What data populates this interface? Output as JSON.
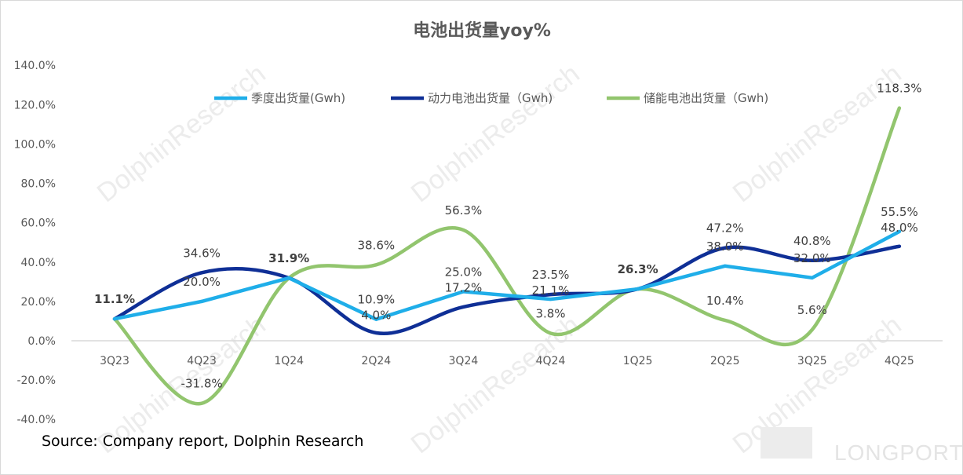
{
  "chart_data": {
    "type": "line",
    "title": "电池出货量yoy%",
    "categories": [
      "3Q23",
      "4Q23",
      "1Q24",
      "2Q24",
      "3Q24",
      "4Q24",
      "1Q25",
      "2Q25",
      "3Q25",
      "4Q25"
    ],
    "ylim": [
      -40,
      140
    ],
    "yticks": [
      "-40.0%",
      "-20.0%",
      "0.0%",
      "20.0%",
      "40.0%",
      "60.0%",
      "80.0%",
      "100.0%",
      "120.0%",
      "140.0%"
    ],
    "ytick_values": [
      -40,
      -20,
      0,
      20,
      40,
      60,
      80,
      100,
      120,
      140
    ],
    "grid": false,
    "legend": "top",
    "series": [
      {
        "name": "季度出货量(Gwh)",
        "color": "#1FAEE9",
        "smooth": false,
        "values": [
          11.1,
          20.0,
          31.9,
          10.9,
          25.0,
          21.1,
          26.3,
          38.0,
          32.0,
          55.5
        ],
        "labels": [
          "11.1%",
          "20.0%",
          "31.9%",
          "10.9%",
          "25.0%",
          "21.1%",
          "26.3%",
          "38.0%",
          "32.0%",
          "55.5%"
        ]
      },
      {
        "name": "动力电池出货量（Gwh)",
        "color": "#0F2F96",
        "smooth": true,
        "values": [
          11.1,
          34.6,
          31.9,
          4.0,
          17.2,
          23.5,
          26.3,
          47.2,
          40.8,
          48.0
        ],
        "labels": [
          "",
          "34.6%",
          "",
          "4.0%",
          "17.2%",
          "23.5%",
          "",
          "47.2%",
          "40.8%",
          "48.0%"
        ]
      },
      {
        "name": "储能电池出货量（Gwh)",
        "color": "#92C56E",
        "smooth": true,
        "values": [
          11.1,
          -31.8,
          31.9,
          38.6,
          56.3,
          3.8,
          26.3,
          10.4,
          5.6,
          118.3
        ],
        "labels": [
          "",
          "-31.8%",
          "",
          "38.6%",
          "56.3%",
          "3.8%",
          "",
          "10.4%",
          "5.6%",
          "118.3%"
        ]
      }
    ]
  },
  "source": "Source: Company report, Dolphin Research",
  "watermark": "DolphinResearch",
  "logo": "LONGPORT"
}
